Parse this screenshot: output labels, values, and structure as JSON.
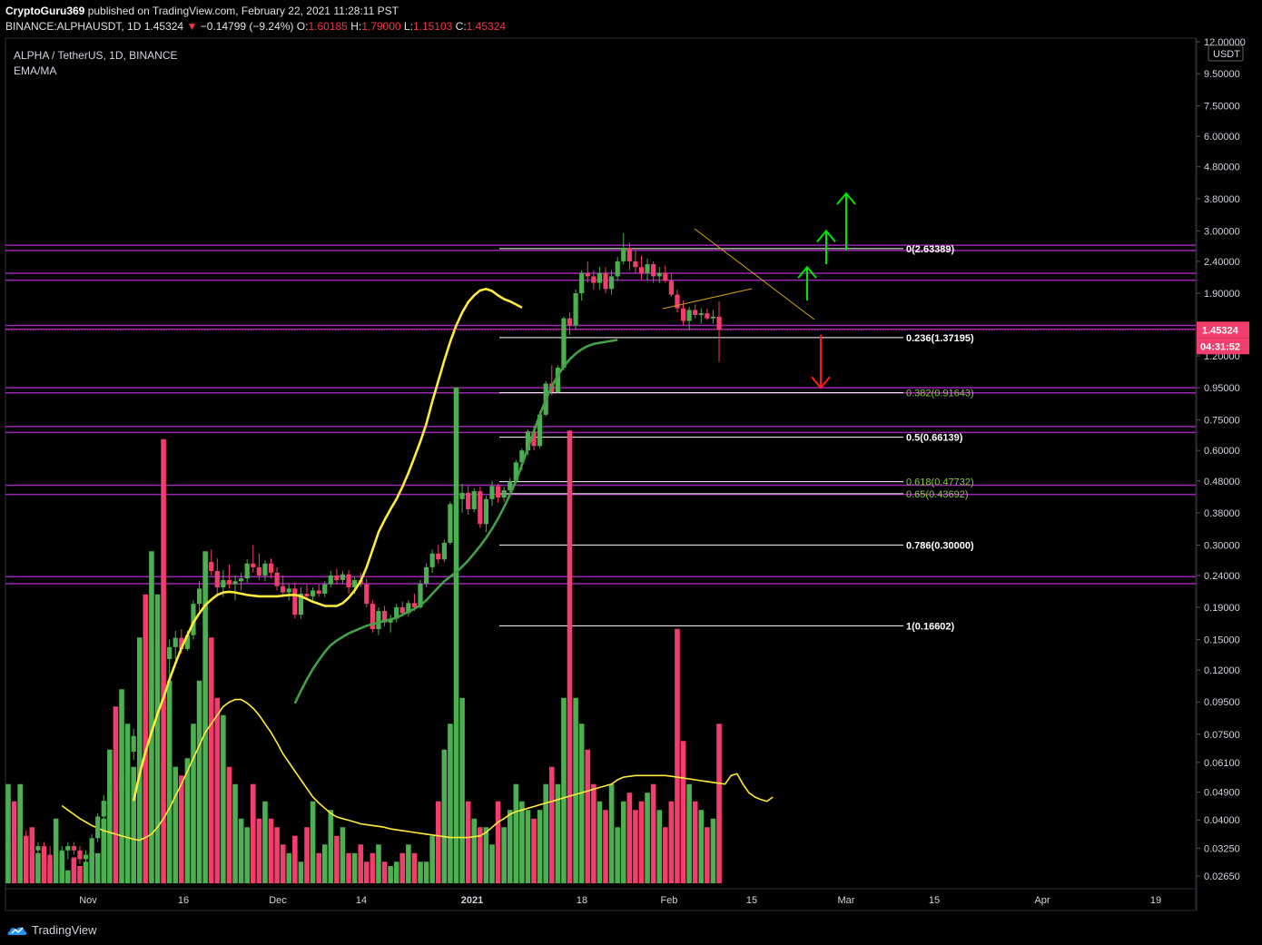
{
  "header": {
    "author": "CryptoGuru369",
    "published_text": "published on TradingView.com, February 22, 2021 11:28:11 PST",
    "symbol": "BINANCE:ALPHAUSDT, 1D",
    "last": "1.45324",
    "change": "−0.14799 (−9.24%)",
    "o_label": "O:",
    "o_value": "1.60185",
    "h_label": "H:",
    "h_value": "1.79000",
    "l_label": "L:",
    "l_value": "1.15103",
    "c_label": "C:",
    "c_value": "1.45324"
  },
  "legend": {
    "title": "ALPHA / TetherUS, 1D, BINANCE",
    "indicator": "EMA/MA"
  },
  "footer": {
    "brand": "TradingView"
  },
  "colors": {
    "up": "#4caf50",
    "down": "#f23d6d",
    "ema_fast": "#ffeb3b",
    "ema_slow": "#43a047",
    "level": "#9c27b0",
    "fib": "#ffffff",
    "arrow_up": "#00e600",
    "arrow_down": "#ff1a1a",
    "badge": "#f23d6d"
  },
  "chart_data": {
    "type": "candlestick",
    "y_scale": "log",
    "currency_label": "USDT",
    "price_ticks": [
      "12.00000",
      "9.50000",
      "7.50000",
      "6.00000",
      "4.80000",
      "3.80000",
      "3.00000",
      "2.40000",
      "1.90000",
      "1.20000",
      "0.95000",
      "0.75000",
      "0.60000",
      "0.48000",
      "0.38000",
      "0.30000",
      "0.24000",
      "0.19000",
      "0.15000",
      "0.12000",
      "0.09500",
      "0.07500",
      "0.06100",
      "0.04900",
      "0.04000",
      "0.03250",
      "0.02650"
    ],
    "x_ticks": [
      "Nov",
      "16",
      "Dec",
      "14",
      "2021",
      "18",
      "Feb",
      "15",
      "Mar",
      "15",
      "Apr",
      "19"
    ],
    "last_price_badge": "1.45324",
    "countdown_badge": "04:31:52",
    "fib_levels": [
      {
        "label": "0(2.63389)",
        "price": 2.63389
      },
      {
        "label": "0.236(1.37195)",
        "price": 1.37195
      },
      {
        "label": "0.382(0.91643)",
        "price": 0.91643
      },
      {
        "label": "0.5(0.66139)",
        "price": 0.66139
      },
      {
        "label": "0.618(0.47732)",
        "price": 0.47732
      },
      {
        "label": "0.65(0.43692)",
        "price": 0.43692
      },
      {
        "label": "0.786(0.30000)",
        "price": 0.3
      },
      {
        "label": "1(0.16602)",
        "price": 0.16602
      }
    ],
    "horizontal_levels": [
      2.7,
      2.6,
      2.2,
      2.09,
      1.5,
      1.46,
      0.95,
      0.915,
      0.715,
      0.685,
      0.465,
      0.435,
      0.238,
      0.226
    ],
    "candles": [
      [
        0.033,
        0.036,
        0.03,
        0.034
      ],
      [
        0.034,
        0.036,
        0.031,
        0.032
      ],
      [
        0.032,
        0.036,
        0.029,
        0.035
      ],
      [
        0.035,
        0.037,
        0.033,
        0.034
      ],
      [
        0.034,
        0.036,
        0.03,
        0.032
      ],
      [
        0.032,
        0.034,
        0.03,
        0.033
      ],
      [
        0.033,
        0.034,
        0.03,
        0.031
      ],
      [
        0.031,
        0.033,
        0.028,
        0.029
      ],
      [
        0.029,
        0.031,
        0.027,
        0.03
      ],
      [
        0.03,
        0.033,
        0.029,
        0.032
      ],
      [
        0.032,
        0.034,
        0.03,
        0.033
      ],
      [
        0.033,
        0.034,
        0.031,
        0.032
      ],
      [
        0.032,
        0.033,
        0.029,
        0.03
      ],
      [
        0.03,
        0.032,
        0.028,
        0.031
      ],
      [
        0.031,
        0.036,
        0.03,
        0.035
      ],
      [
        0.035,
        0.042,
        0.034,
        0.041
      ],
      [
        0.041,
        0.048,
        0.039,
        0.046
      ],
      [
        0.046,
        0.055,
        0.044,
        0.052
      ],
      [
        0.052,
        0.058,
        0.046,
        0.049
      ],
      [
        0.049,
        0.058,
        0.047,
        0.056
      ],
      [
        0.056,
        0.068,
        0.054,
        0.066
      ],
      [
        0.066,
        0.078,
        0.062,
        0.074
      ],
      [
        0.074,
        0.09,
        0.07,
        0.087
      ],
      [
        0.087,
        0.1,
        0.075,
        0.082
      ],
      [
        0.082,
        0.107,
        0.08,
        0.104
      ],
      [
        0.104,
        0.15,
        0.1,
        0.145
      ],
      [
        0.145,
        0.168,
        0.12,
        0.13
      ],
      [
        0.13,
        0.15,
        0.11,
        0.142
      ],
      [
        0.142,
        0.16,
        0.13,
        0.152
      ],
      [
        0.152,
        0.162,
        0.135,
        0.14
      ],
      [
        0.14,
        0.16,
        0.138,
        0.155
      ],
      [
        0.155,
        0.2,
        0.15,
        0.195
      ],
      [
        0.195,
        0.23,
        0.185,
        0.218
      ],
      [
        0.218,
        0.28,
        0.21,
        0.265
      ],
      [
        0.265,
        0.29,
        0.24,
        0.248
      ],
      [
        0.248,
        0.272,
        0.21,
        0.22
      ],
      [
        0.22,
        0.25,
        0.205,
        0.232
      ],
      [
        0.232,
        0.26,
        0.218,
        0.225
      ],
      [
        0.225,
        0.24,
        0.2,
        0.23
      ],
      [
        0.23,
        0.245,
        0.215,
        0.235
      ],
      [
        0.235,
        0.27,
        0.228,
        0.262
      ],
      [
        0.262,
        0.3,
        0.245,
        0.255
      ],
      [
        0.255,
        0.282,
        0.232,
        0.24
      ],
      [
        0.24,
        0.268,
        0.23,
        0.262
      ],
      [
        0.262,
        0.272,
        0.235,
        0.245
      ],
      [
        0.245,
        0.255,
        0.215,
        0.222
      ],
      [
        0.222,
        0.24,
        0.205,
        0.212
      ],
      [
        0.212,
        0.225,
        0.2,
        0.218
      ],
      [
        0.218,
        0.228,
        0.175,
        0.18
      ],
      [
        0.18,
        0.22,
        0.175,
        0.21
      ],
      [
        0.21,
        0.225,
        0.2,
        0.206
      ],
      [
        0.206,
        0.22,
        0.198,
        0.215
      ],
      [
        0.215,
        0.225,
        0.205,
        0.21
      ],
      [
        0.21,
        0.23,
        0.205,
        0.225
      ],
      [
        0.225,
        0.248,
        0.22,
        0.24
      ],
      [
        0.24,
        0.252,
        0.225,
        0.232
      ],
      [
        0.232,
        0.248,
        0.225,
        0.242
      ],
      [
        0.242,
        0.25,
        0.21,
        0.22
      ],
      [
        0.22,
        0.238,
        0.21,
        0.232
      ],
      [
        0.232,
        0.245,
        0.22,
        0.225
      ],
      [
        0.225,
        0.235,
        0.19,
        0.195
      ],
      [
        0.195,
        0.2,
        0.158,
        0.162
      ],
      [
        0.162,
        0.19,
        0.155,
        0.185
      ],
      [
        0.185,
        0.192,
        0.165,
        0.17
      ],
      [
        0.17,
        0.18,
        0.158,
        0.175
      ],
      [
        0.175,
        0.195,
        0.17,
        0.19
      ],
      [
        0.19,
        0.198,
        0.178,
        0.182
      ],
      [
        0.182,
        0.2,
        0.178,
        0.196
      ],
      [
        0.196,
        0.21,
        0.185,
        0.19
      ],
      [
        0.19,
        0.232,
        0.188,
        0.226
      ],
      [
        0.226,
        0.262,
        0.22,
        0.255
      ],
      [
        0.255,
        0.29,
        0.245,
        0.282
      ],
      [
        0.282,
        0.3,
        0.262,
        0.27
      ],
      [
        0.27,
        0.312,
        0.265,
        0.305
      ],
      [
        0.305,
        0.412,
        0.3,
        0.405
      ],
      [
        0.405,
        0.7,
        0.28,
        0.42
      ],
      [
        0.42,
        0.47,
        0.38,
        0.44
      ],
      [
        0.44,
        0.462,
        0.375,
        0.39
      ],
      [
        0.39,
        0.455,
        0.382,
        0.445
      ],
      [
        0.445,
        0.46,
        0.34,
        0.35
      ],
      [
        0.35,
        0.43,
        0.33,
        0.42
      ],
      [
        0.42,
        0.48,
        0.4,
        0.462
      ],
      [
        0.462,
        0.47,
        0.41,
        0.425
      ],
      [
        0.425,
        0.46,
        0.412,
        0.448
      ],
      [
        0.448,
        0.49,
        0.43,
        0.48
      ],
      [
        0.48,
        0.56,
        0.47,
        0.55
      ],
      [
        0.55,
        0.61,
        0.52,
        0.6
      ],
      [
        0.6,
        0.7,
        0.58,
        0.69
      ],
      [
        0.69,
        0.72,
        0.6,
        0.62
      ],
      [
        0.62,
        0.8,
        0.61,
        0.78
      ],
      [
        0.78,
        1.0,
        0.77,
        0.98
      ],
      [
        0.98,
        1.12,
        0.9,
        0.92
      ],
      [
        0.92,
        1.12,
        0.91,
        1.1
      ],
      [
        1.1,
        1.6,
        1.08,
        1.58
      ],
      [
        1.58,
        1.65,
        1.4,
        1.5
      ],
      [
        1.5,
        1.95,
        1.46,
        1.9
      ],
      [
        1.9,
        2.25,
        1.8,
        2.2
      ],
      [
        2.2,
        2.4,
        2.05,
        2.15
      ],
      [
        2.15,
        2.25,
        1.95,
        2.05
      ],
      [
        2.05,
        2.3,
        1.95,
        2.2
      ],
      [
        2.2,
        2.3,
        1.9,
        1.96
      ],
      [
        1.96,
        2.25,
        1.88,
        2.15
      ],
      [
        2.15,
        2.48,
        2.08,
        2.4
      ],
      [
        2.4,
        2.95,
        2.35,
        2.65
      ],
      [
        2.65,
        2.75,
        2.25,
        2.4
      ],
      [
        2.4,
        2.6,
        2.2,
        2.3
      ],
      [
        2.3,
        2.5,
        2.1,
        2.2
      ],
      [
        2.2,
        2.45,
        2.08,
        2.35
      ],
      [
        2.35,
        2.4,
        2.05,
        2.15
      ],
      [
        2.15,
        2.3,
        2.05,
        2.2
      ],
      [
        2.2,
        2.32,
        2.05,
        2.08
      ],
      [
        2.08,
        2.2,
        1.85,
        1.88
      ],
      [
        1.88,
        1.95,
        1.65,
        1.7
      ],
      [
        1.7,
        1.8,
        1.5,
        1.55
      ],
      [
        1.55,
        1.72,
        1.45,
        1.68
      ],
      [
        1.68,
        1.75,
        1.58,
        1.62
      ],
      [
        1.62,
        1.7,
        1.52,
        1.64
      ],
      [
        1.64,
        1.7,
        1.56,
        1.58
      ],
      [
        1.58,
        1.68,
        1.52,
        1.6
      ],
      [
        1.6,
        1.79,
        1.15,
        1.453
      ]
    ],
    "ema_fast": [
      0.046,
      0.056,
      0.066,
      0.076,
      0.087,
      0.098,
      0.112,
      0.126,
      0.141,
      0.155,
      0.17,
      0.182,
      0.193,
      0.201,
      0.208,
      0.212,
      0.213,
      0.212,
      0.21,
      0.208,
      0.207,
      0.206,
      0.206,
      0.206,
      0.206,
      0.207,
      0.208,
      0.208,
      0.206,
      0.202,
      0.198,
      0.195,
      0.192,
      0.192,
      0.192,
      0.196,
      0.204,
      0.215,
      0.23,
      0.255,
      0.29,
      0.33,
      0.36,
      0.39,
      0.42,
      0.46,
      0.51,
      0.57,
      0.64,
      0.73,
      0.86,
      1.0,
      1.16,
      1.33,
      1.5,
      1.65,
      1.78,
      1.87,
      1.94,
      1.96,
      1.93,
      1.87,
      1.82,
      1.79,
      1.75,
      1.71
    ],
    "ema_fast_start": 21,
    "ema_slow": [
      0.094,
      0.103,
      0.112,
      0.121,
      0.129,
      0.137,
      0.144,
      0.149,
      0.153,
      0.157,
      0.16,
      0.163,
      0.166,
      0.168,
      0.17,
      0.172,
      0.174,
      0.176,
      0.18,
      0.184,
      0.188,
      0.193,
      0.2,
      0.21,
      0.22,
      0.23,
      0.238,
      0.246,
      0.256,
      0.268,
      0.282,
      0.298,
      0.316,
      0.338,
      0.364,
      0.396,
      0.434,
      0.48,
      0.54,
      0.61,
      0.69,
      0.78,
      0.87,
      0.96,
      1.04,
      1.11,
      1.17,
      1.22,
      1.26,
      1.29,
      1.31,
      1.32,
      1.33,
      1.34,
      1.35
    ],
    "volume": [
      0.038,
      0.036,
      0.038,
      0.032,
      0.033,
      0.03,
      0.0305,
      0.029,
      0.034,
      0.03,
      0.028,
      0.0295,
      0.0285,
      0.029,
      0.03,
      0.03,
      0.034,
      0.042,
      0.047,
      0.049,
      0.045,
      0.04,
      0.055,
      0.06,
      0.065,
      0.06,
      0.078,
      0.05,
      0.04,
      0.039,
      0.041,
      0.045,
      0.05,
      0.065,
      0.055,
      0.048,
      0.046,
      0.04,
      0.038,
      0.034,
      0.033,
      0.038,
      0.034,
      0.036,
      0.034,
      0.033,
      0.031,
      0.03,
      0.032,
      0.029,
      0.033,
      0.036,
      0.03,
      0.031,
      0.035,
      0.032,
      0.033,
      0.03,
      0.03,
      0.031,
      0.029,
      0.03,
      0.031,
      0.029,
      0.0285,
      0.029,
      0.03,
      0.031,
      0.03,
      0.029,
      0.029,
      0.032,
      0.036,
      0.042,
      0.045,
      0.084,
      0.048,
      0.036,
      0.034,
      0.033,
      0.033,
      0.031,
      0.036,
      0.033,
      0.035,
      0.038,
      0.036,
      0.035,
      0.034,
      0.035,
      0.038,
      0.04,
      0.038,
      0.048,
      0.079,
      0.048,
      0.045,
      0.042,
      0.038,
      0.036,
      0.035,
      0.038,
      0.033,
      0.036,
      0.037,
      0.035,
      0.036,
      0.037,
      0.038,
      0.035,
      0.033,
      0.036,
      0.056,
      0.043,
      0.038,
      0.036,
      0.035,
      0.033,
      0.034,
      0.045
    ],
    "vol_ma": [
      0.0355,
      0.035,
      0.0345,
      0.034,
      0.0336,
      0.0332,
      0.0329,
      0.0326,
      0.0324,
      0.0322,
      0.032,
      0.0318,
      0.0316,
      0.0315,
      0.0318,
      0.0322,
      0.033,
      0.034,
      0.0352,
      0.0366,
      0.038,
      0.0395,
      0.041,
      0.0425,
      0.044,
      0.045,
      0.046,
      0.047,
      0.0475,
      0.0478,
      0.0478,
      0.0474,
      0.0468,
      0.046,
      0.045,
      0.044,
      0.0428,
      0.0415,
      0.0405,
      0.0395,
      0.0385,
      0.0375,
      0.0365,
      0.0358,
      0.0352,
      0.0346,
      0.0342,
      0.034,
      0.0338,
      0.0336,
      0.0334,
      0.0333,
      0.0332,
      0.0331,
      0.033,
      0.0328,
      0.0327,
      0.0326,
      0.0325,
      0.0324,
      0.0323,
      0.0322,
      0.0321,
      0.032,
      0.0319,
      0.0318,
      0.0318,
      0.0318,
      0.0318,
      0.0319,
      0.032,
      0.0324,
      0.033,
      0.0336,
      0.034,
      0.0345,
      0.0348,
      0.035,
      0.0352,
      0.0354,
      0.0356,
      0.0358,
      0.036,
      0.0362,
      0.0364,
      0.0366,
      0.0368,
      0.037,
      0.0372,
      0.0374,
      0.0376,
      0.0378,
      0.038,
      0.0385,
      0.0388,
      0.0389,
      0.039,
      0.039,
      0.039,
      0.039,
      0.039,
      0.039,
      0.0389,
      0.0388,
      0.0387,
      0.0386,
      0.0385,
      0.0384,
      0.0383,
      0.0382,
      0.0381,
      0.038,
      0.039,
      0.0392,
      0.038,
      0.037,
      0.0365,
      0.0362,
      0.036,
      0.0365
    ],
    "vol_ma_start": 9,
    "projections": [
      {
        "dir": "up",
        "from": 2.6,
        "to": 3.95
      },
      {
        "dir": "up",
        "from": 2.35,
        "to": 3.0
      },
      {
        "dir": "up",
        "from": 1.8,
        "to": 2.3
      },
      {
        "dir": "down",
        "from": 1.4,
        "to": 0.95
      }
    ]
  }
}
